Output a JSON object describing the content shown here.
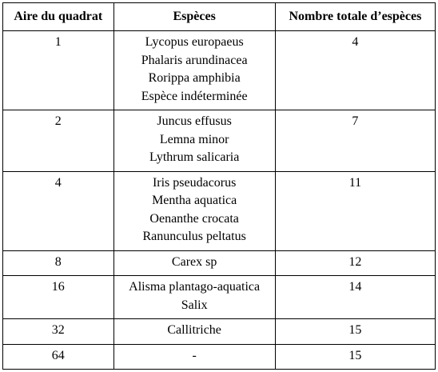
{
  "headers": [
    "Aire du quadrat",
    "Espèces",
    "Nombre totale d’espèces"
  ],
  "rows": [
    {
      "aire": "1",
      "especes": [
        "Lycopus europaeus",
        "Phalaris arundinacea",
        "Rorippa amphibia",
        "Espèce indéterminée"
      ],
      "nombre": "4"
    },
    {
      "aire": "2",
      "especes": [
        "Juncus effusus",
        "Lemna minor",
        "Lythrum salicaria"
      ],
      "nombre": "7"
    },
    {
      "aire": "4",
      "especes": [
        "Iris pseudacorus",
        "Mentha aquatica",
        "Oenanthe crocata",
        "Ranunculus peltatus"
      ],
      "nombre": "11"
    },
    {
      "aire": "8",
      "especes": [
        "Carex sp"
      ],
      "nombre": "12"
    },
    {
      "aire": "16",
      "especes": [
        "Alisma plantago-aquatica",
        "Salix"
      ],
      "nombre": "14"
    },
    {
      "aire": "32",
      "especes": [
        "Callitriche"
      ],
      "nombre": "15"
    },
    {
      "aire": "64",
      "especes": [
        "-"
      ],
      "nombre": "15"
    }
  ]
}
